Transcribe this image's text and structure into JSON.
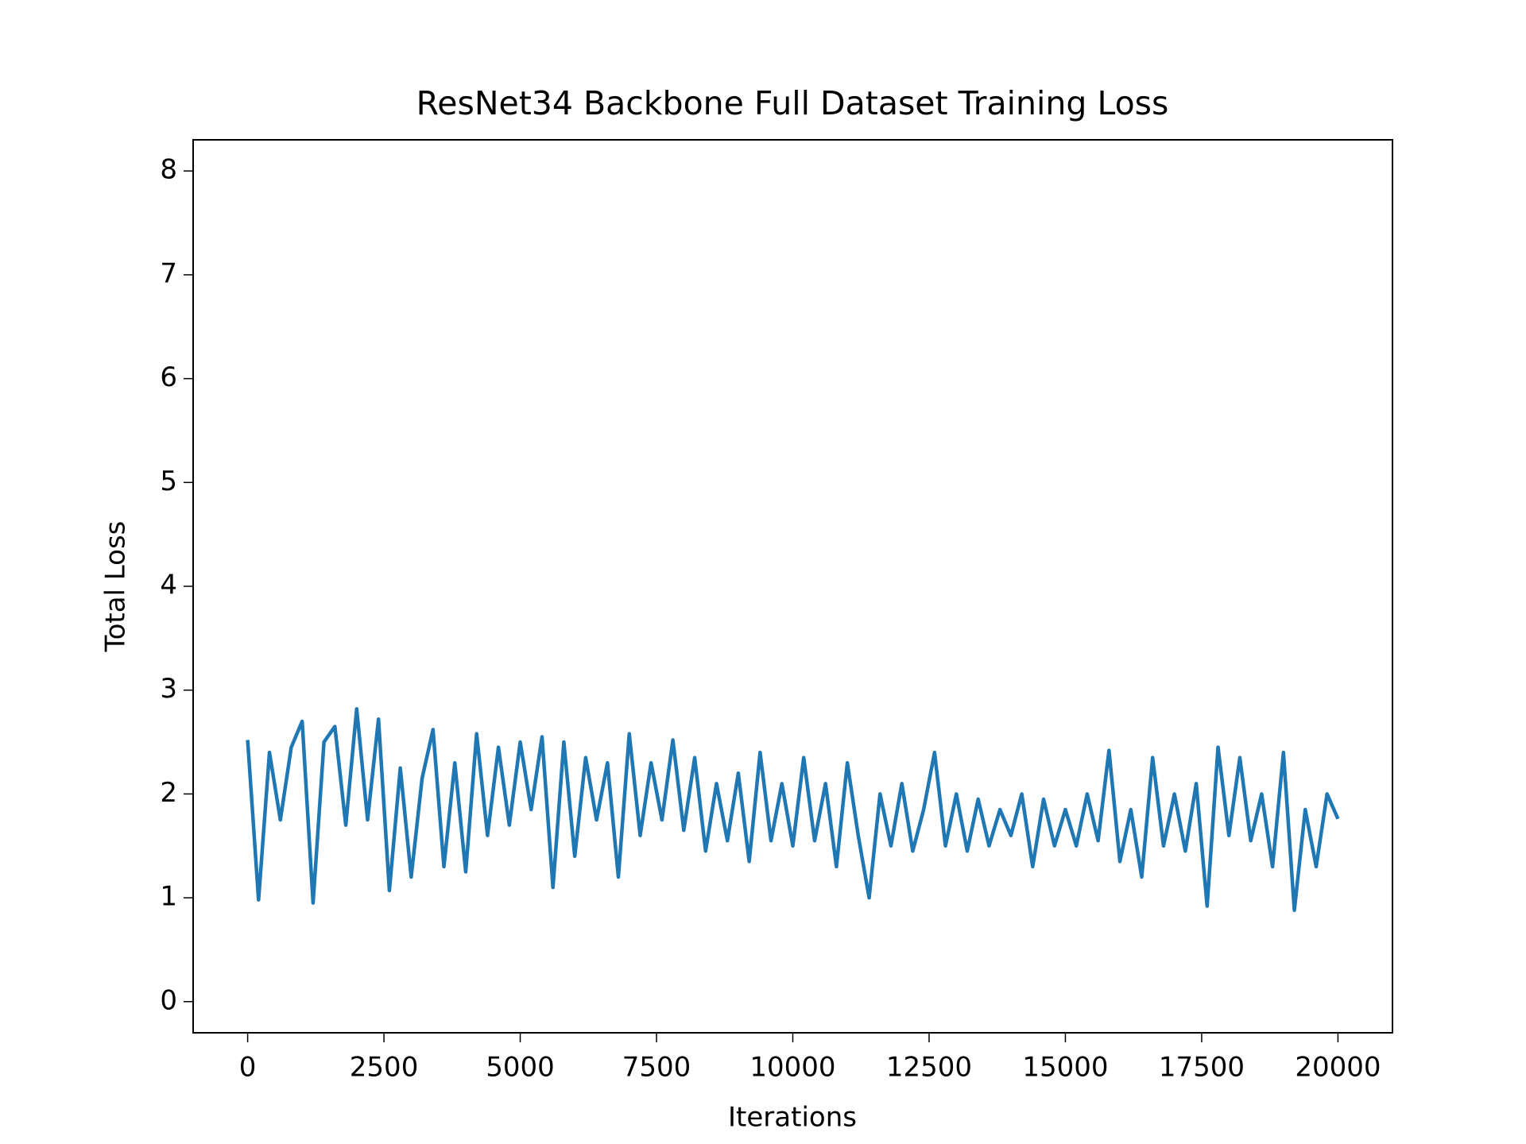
{
  "chart_data": {
    "type": "line",
    "title": "ResNet34 Backbone Full Dataset Training Loss",
    "x_label": "Iterations",
    "y_label": "Total Loss",
    "x": [
      0,
      200,
      400,
      600,
      800,
      1000,
      1200,
      1400,
      1600,
      1800,
      2000,
      2200,
      2400,
      2600,
      2800,
      3000,
      3200,
      3400,
      3600,
      3800,
      4000,
      4200,
      4400,
      4600,
      4800,
      5000,
      5200,
      5400,
      5600,
      5800,
      6000,
      6200,
      6400,
      6600,
      6800,
      7000,
      7200,
      7400,
      7600,
      7800,
      8000,
      8200,
      8400,
      8600,
      8800,
      9000,
      9200,
      9400,
      9600,
      9800,
      10000,
      10200,
      10400,
      10600,
      10800,
      11000,
      11200,
      11400,
      11600,
      11800,
      12000,
      12200,
      12400,
      12600,
      12800,
      13000,
      13200,
      13400,
      13600,
      13800,
      14000,
      14200,
      14400,
      14600,
      14800,
      15000,
      15200,
      15400,
      15600,
      15800,
      16000,
      16200,
      16400,
      16600,
      16800,
      17000,
      17200,
      17400,
      17600,
      17800,
      18000,
      18200,
      18400,
      18600,
      18800,
      19000,
      19200,
      19400,
      19600,
      19800,
      20000
    ],
    "series": [
      {
        "color": "#1f77b4",
        "values": [
          2.52,
          0.98,
          2.4,
          1.75,
          2.45,
          2.7,
          0.95,
          2.5,
          2.65,
          1.7,
          2.82,
          1.75,
          2.72,
          1.07,
          2.25,
          1.2,
          2.15,
          2.62,
          1.3,
          2.3,
          1.25,
          2.58,
          1.6,
          2.45,
          1.7,
          2.5,
          1.85,
          2.55,
          1.1,
          2.5,
          1.4,
          2.35,
          1.75,
          2.3,
          1.2,
          2.58,
          1.6,
          2.3,
          1.75,
          2.52,
          1.65,
          2.35,
          1.45,
          2.1,
          1.55,
          2.2,
          1.35,
          2.4,
          1.55,
          2.1,
          1.5,
          2.35,
          1.55,
          2.1,
          1.3,
          2.3,
          1.6,
          1.0,
          2.0,
          1.5,
          2.1,
          1.45,
          1.85,
          2.4,
          1.5,
          2.0,
          1.45,
          1.95,
          1.5,
          1.85,
          1.6,
          2.0,
          1.3,
          1.95,
          1.5,
          1.85,
          1.5,
          2.0,
          1.55,
          2.42,
          1.35,
          1.85,
          1.2,
          2.35,
          1.5,
          2.0,
          1.45,
          2.1,
          0.92,
          2.45,
          1.6,
          2.35,
          1.55,
          2.0,
          1.3,
          2.4,
          0.88,
          1.85,
          1.3,
          2.0,
          1.76
        ]
      }
    ],
    "xlim": [
      -1000,
      21000
    ],
    "ylim": [
      -0.3,
      8.3
    ],
    "xticks": [
      0,
      2500,
      5000,
      7500,
      10000,
      12500,
      15000,
      17500,
      20000
    ],
    "yticks": [
      0,
      1,
      2,
      3,
      4,
      5,
      6,
      7,
      8
    ]
  }
}
